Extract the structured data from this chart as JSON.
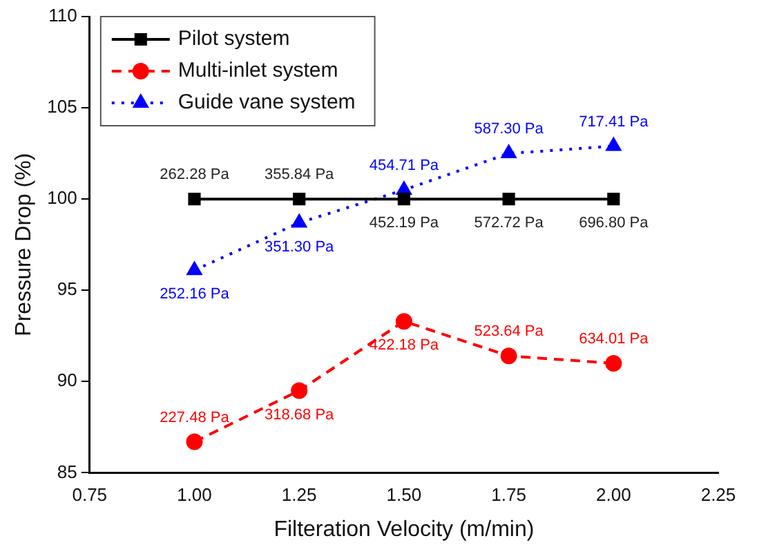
{
  "chart_data": {
    "type": "line",
    "xlabel": "Filteration Velocity (m/min)",
    "ylabel": "Pressure Drop (%)",
    "x": [
      1.0,
      1.25,
      1.5,
      1.75,
      2.0
    ],
    "xlim": [
      0.75,
      2.25
    ],
    "xticks": [
      {
        "value": 0.75,
        "label": "0.75"
      },
      {
        "value": 1,
        "label": "1.00"
      },
      {
        "value": 1.25,
        "label": "1.25"
      },
      {
        "value": 1.5,
        "label": "1.50"
      },
      {
        "value": 1.75,
        "label": "1.75"
      },
      {
        "value": 2,
        "label": "2.00"
      },
      {
        "value": 2.25,
        "label": "2.25"
      }
    ],
    "ylim": [
      85,
      110
    ],
    "yticks": [
      85,
      90,
      95,
      100,
      105,
      110
    ],
    "grid": false,
    "legend": "top left",
    "series": [
      {
        "name": "Pilot system",
        "color": "#000000",
        "marker": "square",
        "line_style": "solid",
        "values": [
          100,
          100,
          100,
          100,
          100
        ]
      },
      {
        "name": "Multi-inlet system",
        "color": "#ff0000",
        "marker": "circle",
        "line_style": "dashed",
        "values": [
          86.7,
          89.5,
          93.3,
          91.4,
          91.0
        ]
      },
      {
        "name": "Guide vane system",
        "color": "#0000ff",
        "marker": "triangle",
        "line_style": "dotted",
        "values": [
          96.1,
          98.7,
          100.5,
          102.5,
          102.9
        ]
      }
    ],
    "annotations": [
      {
        "text": "262.28 Pa",
        "x": 1.0,
        "y": 100
      },
      {
        "text": "355.84 Pa",
        "x": 1.25,
        "y": 100
      },
      {
        "text": "452.19 Pa",
        "x": 1.5,
        "y": 100
      },
      {
        "text": "572.72 Pa",
        "x": 1.75,
        "y": 100
      },
      {
        "text": "696.80 Pa",
        "x": 2.0,
        "y": 100
      },
      {
        "text": "227.48 Pa",
        "x": 1.0,
        "y": 86.7
      },
      {
        "text": "318.68 Pa",
        "x": 1.25,
        "y": 89.5
      },
      {
        "text": "422.18 Pa",
        "x": 1.5,
        "y": 93.3
      },
      {
        "text": "523.64 Pa",
        "x": 1.75,
        "y": 91.4
      },
      {
        "text": "634.01 Pa",
        "x": 2.0,
        "y": 91.0
      },
      {
        "text": "252.16 Pa",
        "x": 1.0,
        "y": 96.1
      },
      {
        "text": "351.30 Pa",
        "x": 1.25,
        "y": 98.7
      },
      {
        "text": "454.71 Pa",
        "x": 1.5,
        "y": 100.5
      },
      {
        "text": "587.30 Pa",
        "x": 1.75,
        "y": 102.5
      },
      {
        "text": "717.41 Pa",
        "x": 2.0,
        "y": 102.9
      }
    ]
  }
}
